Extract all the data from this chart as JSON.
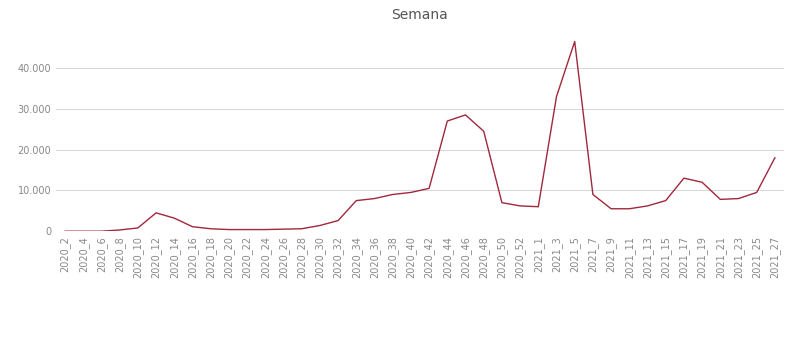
{
  "title": "Semana",
  "x_labels": [
    "2020_2",
    "2020_4",
    "2020_6",
    "2020_8",
    "2020_10",
    "2020_12",
    "2020_14",
    "2020_16",
    "2020_18",
    "2020_20",
    "2020_22",
    "2020_24",
    "2020_26",
    "2020_28",
    "2020_30",
    "2020_32",
    "2020_34",
    "2020_36",
    "2020_38",
    "2020_40",
    "2020_42",
    "2020_44",
    "2020_46",
    "2020_48",
    "2020_50",
    "2020_52",
    "2021_1",
    "2021_3",
    "2021_5",
    "2021_7",
    "2021_9",
    "2021_11",
    "2021_13",
    "2021_15",
    "2021_17",
    "2021_19",
    "2021_21",
    "2021_23",
    "2021_25",
    "2021_27"
  ],
  "y_values": [
    0,
    0,
    0,
    300,
    800,
    4500,
    3200,
    1100,
    600,
    400,
    400,
    400,
    500,
    600,
    1400,
    2600,
    7500,
    8000,
    9000,
    9500,
    10500,
    27000,
    28500,
    24500,
    7000,
    6200,
    6000,
    33000,
    46500,
    9000,
    5500,
    5500,
    6200,
    7500,
    13000,
    12000,
    7800,
    8000,
    9500,
    18000
  ],
  "line_color": "#a0283c",
  "background_color": "#ffffff",
  "grid_color": "#d0d0d0",
  "ylim": [
    0,
    50000
  ],
  "yticks": [
    0,
    10000,
    20000,
    30000,
    40000
  ],
  "title_fontsize": 10,
  "tick_fontsize": 7,
  "title_color": "#555555",
  "tick_color": "#888888"
}
